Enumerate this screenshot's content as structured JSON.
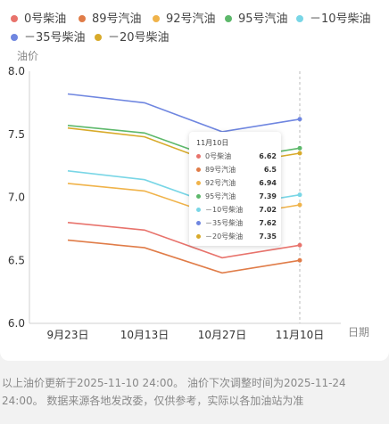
{
  "chart_data": {
    "type": "line",
    "categories": [
      "9月23日",
      "10月13日",
      "10月27日",
      "11月10日"
    ],
    "xlabel": "日期",
    "ylabel": "油价",
    "ylim": [
      6.0,
      8.0
    ],
    "yticks": [
      "6.0",
      "6.5",
      "7.0",
      "7.5",
      "8.0"
    ],
    "series": [
      {
        "name": "0号柴油",
        "color": "#e8736c",
        "values": [
          6.8,
          6.74,
          6.52,
          6.62
        ]
      },
      {
        "name": "89号汽油",
        "color": "#e07c48",
        "values": [
          6.66,
          6.6,
          6.4,
          6.5
        ]
      },
      {
        "name": "92号汽油",
        "color": "#f0b34a",
        "values": [
          7.11,
          7.05,
          6.84,
          6.94
        ]
      },
      {
        "name": "95号汽油",
        "color": "#5db86b",
        "values": [
          7.57,
          7.51,
          7.29,
          7.39
        ]
      },
      {
        "name": "－10号柴油",
        "color": "#79d6e6",
        "values": [
          7.21,
          7.14,
          6.92,
          7.02
        ]
      },
      {
        "name": "－35号柴油",
        "color": "#6f86e0",
        "values": [
          7.82,
          7.75,
          7.52,
          7.62
        ]
      },
      {
        "name": "－20号柴油",
        "color": "#d8aa2a",
        "values": [
          7.55,
          7.48,
          7.25,
          7.35
        ]
      }
    ],
    "legend_position": "top",
    "tooltip": {
      "title": "11月10日",
      "rows": [
        {
          "name": "0号柴油",
          "value": "6.62",
          "color": "#e8736c"
        },
        {
          "name": "89号汽油",
          "value": "6.5",
          "color": "#e07c48"
        },
        {
          "name": "92号汽油",
          "value": "6.94",
          "color": "#f0b34a"
        },
        {
          "name": "95号汽油",
          "value": "7.39",
          "color": "#5db86b"
        },
        {
          "name": "－10号柴油",
          "value": "7.02",
          "color": "#79d6e6"
        },
        {
          "name": "－35号柴油",
          "value": "7.62",
          "color": "#6f86e0"
        },
        {
          "name": "－20号柴油",
          "value": "7.35",
          "color": "#d8aa2a"
        }
      ]
    }
  },
  "footer": {
    "text": "以上油价更新于2025-11-10 24:00。 油价下次调整时间为2025-11-24 24:00。 数据来源各地发改委，仅供参考，实际以各加油站为准"
  }
}
